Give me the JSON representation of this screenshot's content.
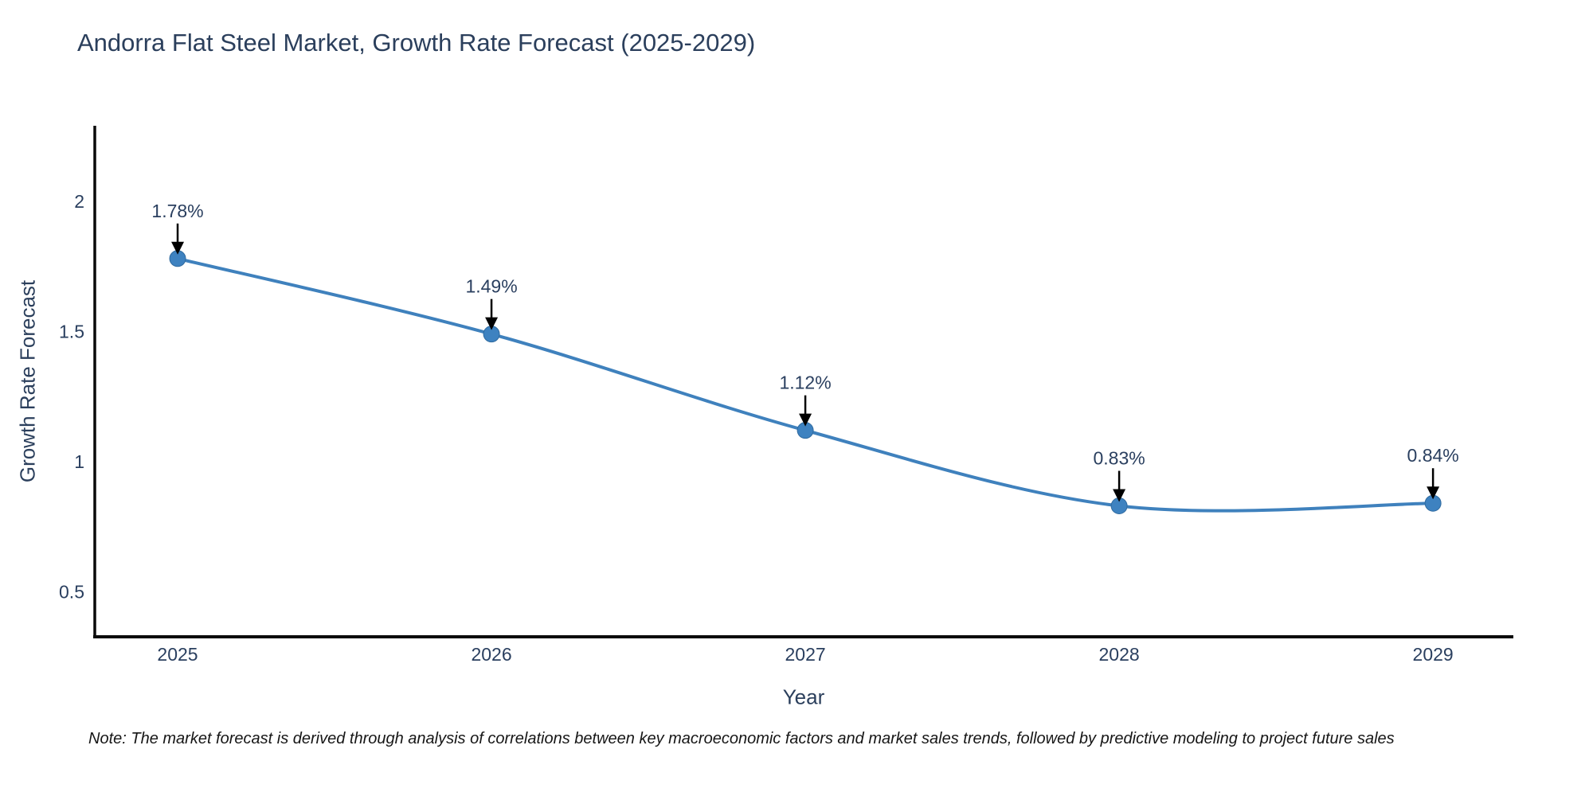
{
  "title": "Andorra Flat Steel Market, Growth Rate Forecast (2025-2029)",
  "note": "Note: The market forecast is derived through analysis of correlations between key macroeconomic factors and market sales trends, followed by predictive modeling to project future sales",
  "chart_data": {
    "type": "line",
    "title": "Andorra Flat Steel Market, Growth Rate Forecast (2025-2029)",
    "xlabel": "Year",
    "ylabel": "Growth Rate Forecast",
    "x": [
      2025,
      2026,
      2027,
      2028,
      2029
    ],
    "values": [
      1.78,
      1.49,
      1.12,
      0.83,
      0.84
    ],
    "point_labels": [
      "1.78%",
      "1.49%",
      "1.12%",
      "0.83%",
      "0.84%"
    ],
    "xtick_labels": [
      "2025",
      "2026",
      "2027",
      "2028",
      "2029"
    ],
    "ytick_values": [
      0.5,
      1,
      1.5,
      2
    ],
    "ytick_labels": [
      "0.5",
      "1",
      "1.5",
      "2"
    ],
    "xlim": [
      2024.736,
      2029.256
    ],
    "ylim": [
      0.327,
      2.29
    ],
    "grid": false,
    "legend": "none",
    "line_smoothing": "spline",
    "colors": {
      "line": "#3f81bd",
      "marker_fill": "#3e82c0",
      "marker_edge": "#2f6a9f",
      "axis_line": "#0a0a0a",
      "annotation_arrow": "#000000",
      "annotation_text": "#2a3f5f",
      "tick_text": "#2a3f5f",
      "title_text": "#2b3f5c",
      "background": "#ffffff"
    }
  }
}
